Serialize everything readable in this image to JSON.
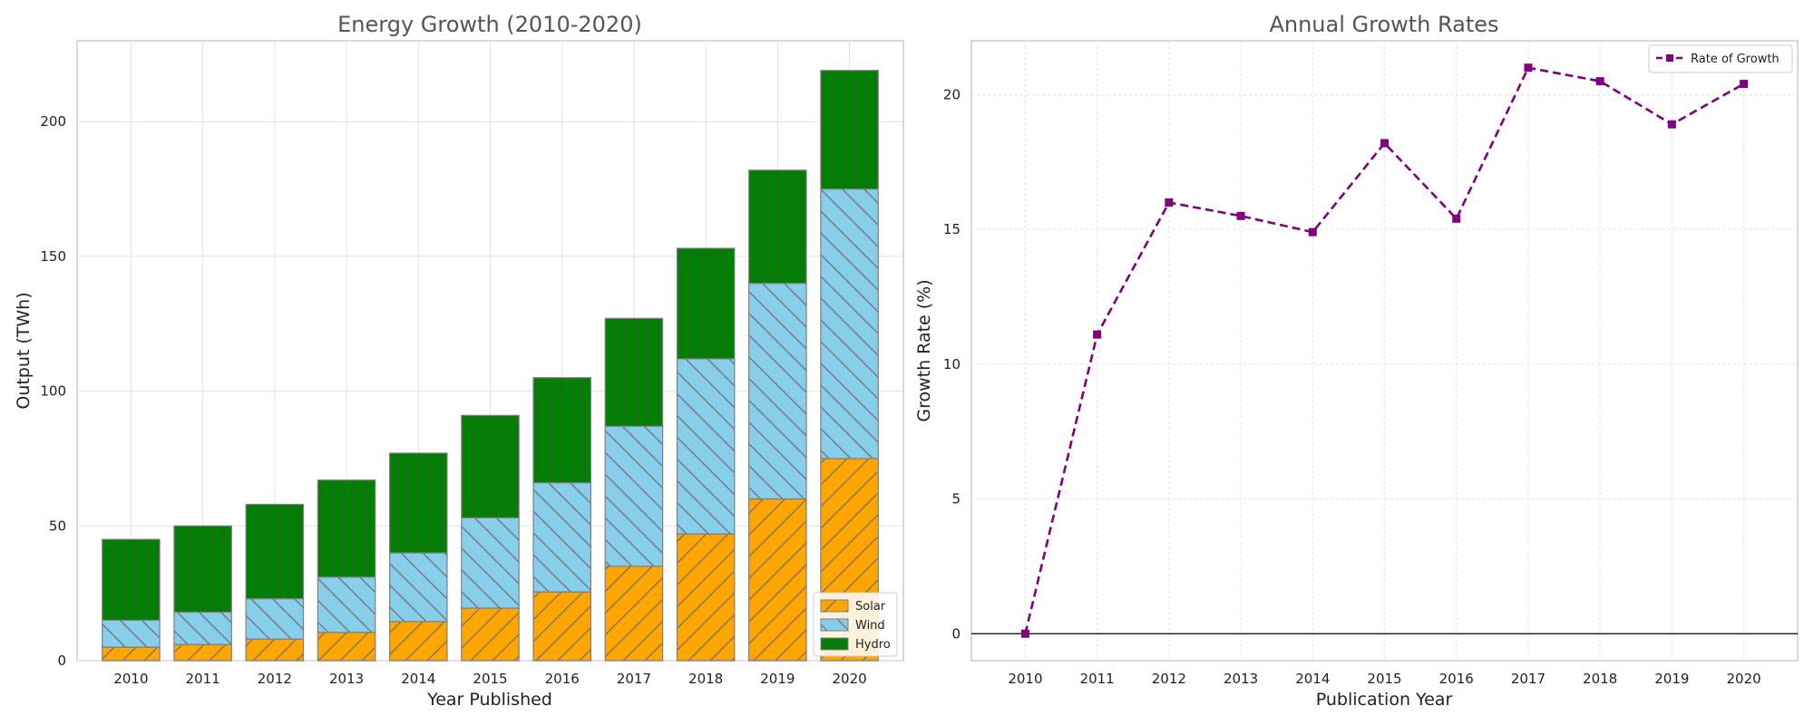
{
  "chart_data": [
    {
      "type": "bar",
      "stacked": true,
      "title": "Energy Growth (2010-2020)",
      "xlabel": "Year Published",
      "ylabel": "Output (TWh)",
      "categories": [
        "2010",
        "2011",
        "2012",
        "2013",
        "2014",
        "2015",
        "2016",
        "2017",
        "2018",
        "2019",
        "2020"
      ],
      "series": [
        {
          "name": "Solar",
          "color": "#ffa500",
          "hatch": "diagonal-forward",
          "values": [
            5,
            6,
            8,
            10.5,
            14.5,
            19.5,
            25.5,
            35,
            47,
            60,
            75
          ]
        },
        {
          "name": "Wind",
          "color": "#87ceeb",
          "hatch": "diagonal-back",
          "values": [
            10,
            12,
            15,
            20.5,
            25.5,
            33.5,
            40.5,
            52,
            65,
            80,
            100
          ]
        },
        {
          "name": "Hydro",
          "color": "#008000",
          "hatch": "vertical",
          "values": [
            30,
            32,
            35,
            36,
            37,
            38,
            39,
            40,
            41,
            42,
            44
          ]
        }
      ],
      "ylim": [
        0,
        230
      ],
      "yticks": [
        0,
        50,
        100,
        150,
        200
      ],
      "grid": true,
      "legend_position": "bottom-right"
    },
    {
      "type": "line",
      "title": "Annual Growth Rates",
      "xlabel": "Publication Year",
      "ylabel": "Growth Rate (%)",
      "x": [
        "2010",
        "2011",
        "2012",
        "2013",
        "2014",
        "2015",
        "2016",
        "2017",
        "2018",
        "2019",
        "2020"
      ],
      "series": [
        {
          "name": "Rate of Growth",
          "color": "#800080",
          "line_style": "dashed",
          "marker": "square",
          "values": [
            0,
            11.1,
            16.0,
            15.5,
            14.9,
            18.2,
            15.4,
            21.0,
            20.5,
            18.9,
            20.4
          ]
        }
      ],
      "ylim": [
        -1,
        22
      ],
      "yticks": [
        0,
        5,
        10,
        15,
        20
      ],
      "grid": true,
      "zero_line": true,
      "legend_position": "top-right"
    }
  ]
}
